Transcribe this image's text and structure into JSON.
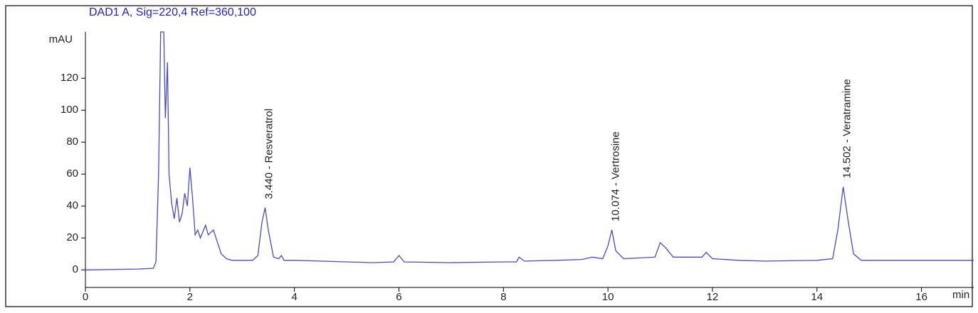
{
  "chart_data": {
    "type": "line",
    "title": "DAD1 A, Sig=220,4 Ref=360,100",
    "y_label": "mAU",
    "x_label": "min",
    "xlim": [
      0,
      17
    ],
    "ylim": [
      -11,
      149
    ],
    "xticks": [
      0,
      2,
      4,
      6,
      8,
      10,
      12,
      14,
      16
    ],
    "yticks": [
      0,
      20,
      40,
      60,
      80,
      100,
      120
    ],
    "series": [
      {
        "name": "DAD1 A",
        "color": "#4a4ac8",
        "x": [
          0,
          1.0,
          1.3,
          1.35,
          1.4,
          1.44,
          1.5,
          1.53,
          1.57,
          1.6,
          1.65,
          1.7,
          1.75,
          1.8,
          1.85,
          1.9,
          1.95,
          2.0,
          2.05,
          2.1,
          2.15,
          2.2,
          2.3,
          2.35,
          2.45,
          2.5,
          2.6,
          2.7,
          2.8,
          3.0,
          3.2,
          3.3,
          3.38,
          3.44,
          3.5,
          3.6,
          3.7,
          3.75,
          3.8,
          4.0,
          4.5,
          5.0,
          5.5,
          5.9,
          6.0,
          6.1,
          7.0,
          8.0,
          8.25,
          8.3,
          8.4,
          9.0,
          9.5,
          9.7,
          9.9,
          10.0,
          10.074,
          10.15,
          10.3,
          10.9,
          11.0,
          11.1,
          11.25,
          11.8,
          11.88,
          12.0,
          12.5,
          13.0,
          14.0,
          14.3,
          14.4,
          14.502,
          14.6,
          14.7,
          14.85,
          15.5,
          16,
          17
        ],
        "values": [
          0,
          0.5,
          1,
          5,
          60,
          149,
          149,
          95,
          130,
          60,
          42,
          32,
          45,
          30,
          35,
          48,
          40,
          64,
          45,
          22,
          25,
          20,
          28,
          22,
          25,
          20,
          10,
          7,
          6,
          6,
          6,
          9,
          30,
          39,
          25,
          8,
          7,
          9,
          6,
          6,
          5.5,
          5,
          4.5,
          5,
          9,
          5,
          4.5,
          5,
          5,
          8,
          5.5,
          6,
          6.5,
          8,
          7,
          15,
          25,
          12,
          7,
          8,
          17,
          14,
          8,
          8,
          11,
          7,
          6,
          5.5,
          6,
          7,
          25,
          52,
          30,
          10,
          6,
          6,
          6,
          6
        ]
      }
    ],
    "annotations": [
      {
        "text": "3.440 -  Resveratrol",
        "x": 3.44,
        "y": 39
      },
      {
        "text": "10.074 -  Vertrosine",
        "x": 10.074,
        "y": 25
      },
      {
        "text": "14.502 -  Veratramine",
        "x": 14.502,
        "y": 52
      }
    ]
  }
}
